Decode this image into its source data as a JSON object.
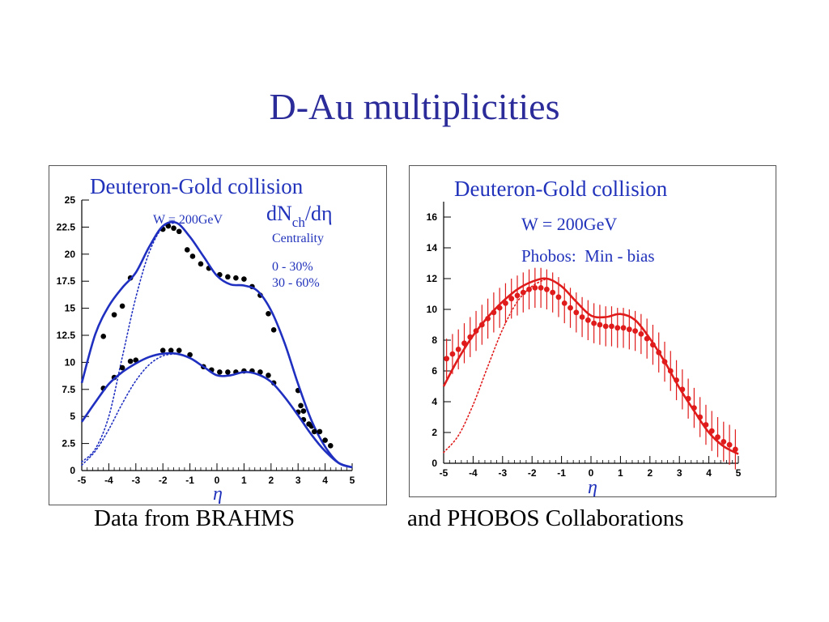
{
  "slide": {
    "title": "D-Au multiplicities",
    "caption_left": "Data from BRAHMS",
    "caption_right": "and PHOBOS Collaborations"
  },
  "colors": {
    "title": "#2b2b9a",
    "brahms_curve": "#1f2fc0",
    "phobos_curve": "#e01b1b",
    "data_points": "#000000",
    "plot_text": "#2233bb"
  },
  "chart_data": [
    {
      "id": "brahms",
      "type": "line",
      "title": "Deuteron-Gold collision",
      "energy_label": "W = 200GeV",
      "ylabel_main": "dN",
      "ylabel_sub": "ch",
      "ylabel_tail": "/dη",
      "legend_title": "Centrality",
      "xlabel": "η",
      "xlim": [
        -5,
        5
      ],
      "ylim": [
        0,
        25
      ],
      "xticks": [
        "-5",
        "-4",
        "-3",
        "-2",
        "-1",
        "0",
        "1",
        "2",
        "3",
        "4",
        "5"
      ],
      "yticks": [
        "0",
        "2.5",
        "5",
        "7.5",
        "10",
        "12.5",
        "15",
        "17.5",
        "20",
        "22.5",
        "25"
      ],
      "series": [
        {
          "name": "0 - 30%",
          "points": [
            [
              -4.2,
              12.4
            ],
            [
              -3.8,
              14.4
            ],
            [
              -3.5,
              15.2
            ],
            [
              -3.2,
              17.8
            ],
            [
              -2.0,
              22.3
            ],
            [
              -1.8,
              22.6
            ],
            [
              -1.6,
              22.4
            ],
            [
              -1.4,
              22.1
            ],
            [
              -1.1,
              20.4
            ],
            [
              -0.9,
              19.8
            ],
            [
              -0.6,
              19.1
            ],
            [
              -0.3,
              18.7
            ],
            [
              0.1,
              18.1
            ],
            [
              0.4,
              17.9
            ],
            [
              0.7,
              17.8
            ],
            [
              1.0,
              17.7
            ],
            [
              1.3,
              17.0
            ],
            [
              1.6,
              16.2
            ],
            [
              1.9,
              14.5
            ],
            [
              2.1,
              13.0
            ],
            [
              3.0,
              7.4
            ],
            [
              3.1,
              6.0
            ],
            [
              3.2,
              5.5
            ],
            [
              3.5,
              4.1
            ]
          ],
          "model": [
            [
              -5.0,
              8.1
            ],
            [
              -4.5,
              12.6
            ],
            [
              -4.0,
              15.2
            ],
            [
              -3.5,
              16.9
            ],
            [
              -3.0,
              18.3
            ],
            [
              -2.5,
              20.7
            ],
            [
              -2.0,
              22.6
            ],
            [
              -1.5,
              22.9
            ],
            [
              -1.0,
              21.6
            ],
            [
              -0.5,
              19.8
            ],
            [
              0.0,
              18.0
            ],
            [
              0.5,
              17.2
            ],
            [
              1.0,
              17.1
            ],
            [
              1.5,
              16.6
            ],
            [
              2.0,
              14.8
            ],
            [
              2.5,
              11.8
            ],
            [
              3.0,
              8.0
            ],
            [
              3.5,
              4.6
            ],
            [
              4.0,
              2.2
            ],
            [
              4.5,
              0.7
            ],
            [
              5.0,
              0.3
            ]
          ],
          "model_alt": [
            [
              -5.0,
              0.8
            ],
            [
              -4.5,
              2.0
            ],
            [
              -4.0,
              5.0
            ],
            [
              -3.5,
              10.5
            ],
            [
              -3.0,
              16.0
            ],
            [
              -2.5,
              20.2
            ],
            [
              -2.0,
              22.5
            ],
            [
              -1.5,
              22.9
            ]
          ]
        },
        {
          "name": "30 - 60%",
          "points": [
            [
              -4.2,
              7.6
            ],
            [
              -3.8,
              8.6
            ],
            [
              -3.5,
              9.5
            ],
            [
              -3.2,
              10.1
            ],
            [
              -3.0,
              10.2
            ],
            [
              -2.0,
              11.1
            ],
            [
              -1.7,
              11.1
            ],
            [
              -1.4,
              11.1
            ],
            [
              -1.0,
              10.7
            ],
            [
              -0.5,
              9.6
            ],
            [
              -0.2,
              9.3
            ],
            [
              0.1,
              9.1
            ],
            [
              0.4,
              9.1
            ],
            [
              0.7,
              9.1
            ],
            [
              1.0,
              9.2
            ],
            [
              1.3,
              9.2
            ],
            [
              1.6,
              9.1
            ],
            [
              1.9,
              8.8
            ],
            [
              2.1,
              8.1
            ],
            [
              3.0,
              5.4
            ],
            [
              3.2,
              4.7
            ],
            [
              3.4,
              4.3
            ],
            [
              3.6,
              3.6
            ],
            [
              3.8,
              3.6
            ],
            [
              4.0,
              2.8
            ],
            [
              4.2,
              2.3
            ]
          ],
          "model": [
            [
              -5.0,
              4.5
            ],
            [
              -4.5,
              6.3
            ],
            [
              -4.0,
              8.0
            ],
            [
              -3.5,
              9.1
            ],
            [
              -3.0,
              9.9
            ],
            [
              -2.5,
              10.5
            ],
            [
              -2.0,
              10.8
            ],
            [
              -1.5,
              10.8
            ],
            [
              -1.0,
              10.4
            ],
            [
              -0.5,
              9.6
            ],
            [
              0.0,
              8.8
            ],
            [
              0.5,
              8.8
            ],
            [
              1.0,
              9.1
            ],
            [
              1.5,
              8.9
            ],
            [
              2.0,
              8.2
            ],
            [
              2.5,
              6.8
            ],
            [
              3.0,
              5.1
            ],
            [
              3.5,
              3.3
            ],
            [
              4.0,
              1.8
            ],
            [
              4.5,
              0.7
            ],
            [
              5.0,
              0.3
            ]
          ],
          "model_alt": [
            [
              -5.0,
              0.5
            ],
            [
              -4.5,
              1.8
            ],
            [
              -4.0,
              3.8
            ],
            [
              -3.5,
              6.2
            ],
            [
              -3.0,
              8.3
            ],
            [
              -2.5,
              9.8
            ],
            [
              -2.0,
              10.6
            ],
            [
              -1.5,
              10.8
            ]
          ]
        }
      ]
    },
    {
      "id": "phobos",
      "type": "line",
      "title": "Deuteron-Gold collision",
      "energy_label": "W = 200GeV",
      "note": "Phobos:  Min - bias",
      "xlabel": "η",
      "xlim": [
        -5,
        5
      ],
      "ylim": [
        0,
        17
      ],
      "xticks": [
        "-5",
        "-4",
        "-3",
        "-2",
        "-1",
        "0",
        "1",
        "2",
        "3",
        "4",
        "5"
      ],
      "yticks": [
        "0",
        "2",
        "4",
        "6",
        "8",
        "10",
        "12",
        "14",
        "16"
      ],
      "series": [
        {
          "name": "Phobos Min-bias",
          "points": [
            [
              -4.9,
              6.8
            ],
            [
              -4.7,
              7.1
            ],
            [
              -4.5,
              7.4
            ],
            [
              -4.3,
              7.8
            ],
            [
              -4.1,
              8.2
            ],
            [
              -3.9,
              8.6
            ],
            [
              -3.7,
              9.0
            ],
            [
              -3.5,
              9.4
            ],
            [
              -3.3,
              9.8
            ],
            [
              -3.1,
              10.1
            ],
            [
              -2.9,
              10.4
            ],
            [
              -2.7,
              10.7
            ],
            [
              -2.5,
              10.9
            ],
            [
              -2.3,
              11.1
            ],
            [
              -2.1,
              11.3
            ],
            [
              -1.9,
              11.4
            ],
            [
              -1.7,
              11.4
            ],
            [
              -1.5,
              11.3
            ],
            [
              -1.3,
              11.1
            ],
            [
              -1.1,
              10.8
            ],
            [
              -0.9,
              10.4
            ],
            [
              -0.7,
              10.1
            ],
            [
              -0.5,
              9.8
            ],
            [
              -0.3,
              9.5
            ],
            [
              -0.1,
              9.3
            ],
            [
              0.1,
              9.1
            ],
            [
              0.3,
              9.0
            ],
            [
              0.5,
              8.9
            ],
            [
              0.7,
              8.9
            ],
            [
              0.9,
              8.8
            ],
            [
              1.1,
              8.8
            ],
            [
              1.3,
              8.7
            ],
            [
              1.5,
              8.6
            ],
            [
              1.7,
              8.4
            ],
            [
              1.9,
              8.1
            ],
            [
              2.1,
              7.7
            ],
            [
              2.3,
              7.2
            ],
            [
              2.5,
              6.6
            ],
            [
              2.7,
              6.0
            ],
            [
              2.9,
              5.4
            ],
            [
              3.1,
              4.8
            ],
            [
              3.3,
              4.2
            ],
            [
              3.5,
              3.6
            ],
            [
              3.7,
              3.0
            ],
            [
              3.9,
              2.5
            ],
            [
              4.1,
              2.1
            ],
            [
              4.3,
              1.7
            ],
            [
              4.5,
              1.4
            ],
            [
              4.7,
              1.2
            ],
            [
              4.9,
              0.9
            ]
          ],
          "model": [
            [
              -5.0,
              5.0
            ],
            [
              -4.5,
              6.8
            ],
            [
              -4.0,
              8.3
            ],
            [
              -3.5,
              9.5
            ],
            [
              -3.0,
              10.5
            ],
            [
              -2.5,
              11.3
            ],
            [
              -2.0,
              11.8
            ],
            [
              -1.5,
              12.0
            ],
            [
              -1.0,
              11.5
            ],
            [
              -0.5,
              10.5
            ],
            [
              0.0,
              9.6
            ],
            [
              0.5,
              9.5
            ],
            [
              1.0,
              9.7
            ],
            [
              1.5,
              9.3
            ],
            [
              2.0,
              8.1
            ],
            [
              2.5,
              6.6
            ],
            [
              3.0,
              4.9
            ],
            [
              3.5,
              3.4
            ],
            [
              4.0,
              2.0
            ],
            [
              4.5,
              1.1
            ],
            [
              5.0,
              0.6
            ]
          ],
          "model_alt": [
            [
              -5.0,
              0.7
            ],
            [
              -4.5,
              1.8
            ],
            [
              -4.0,
              3.8
            ],
            [
              -3.5,
              6.3
            ],
            [
              -3.0,
              8.7
            ],
            [
              -2.5,
              10.5
            ],
            [
              -2.0,
              11.5
            ],
            [
              -1.5,
              12.0
            ]
          ]
        }
      ]
    }
  ]
}
